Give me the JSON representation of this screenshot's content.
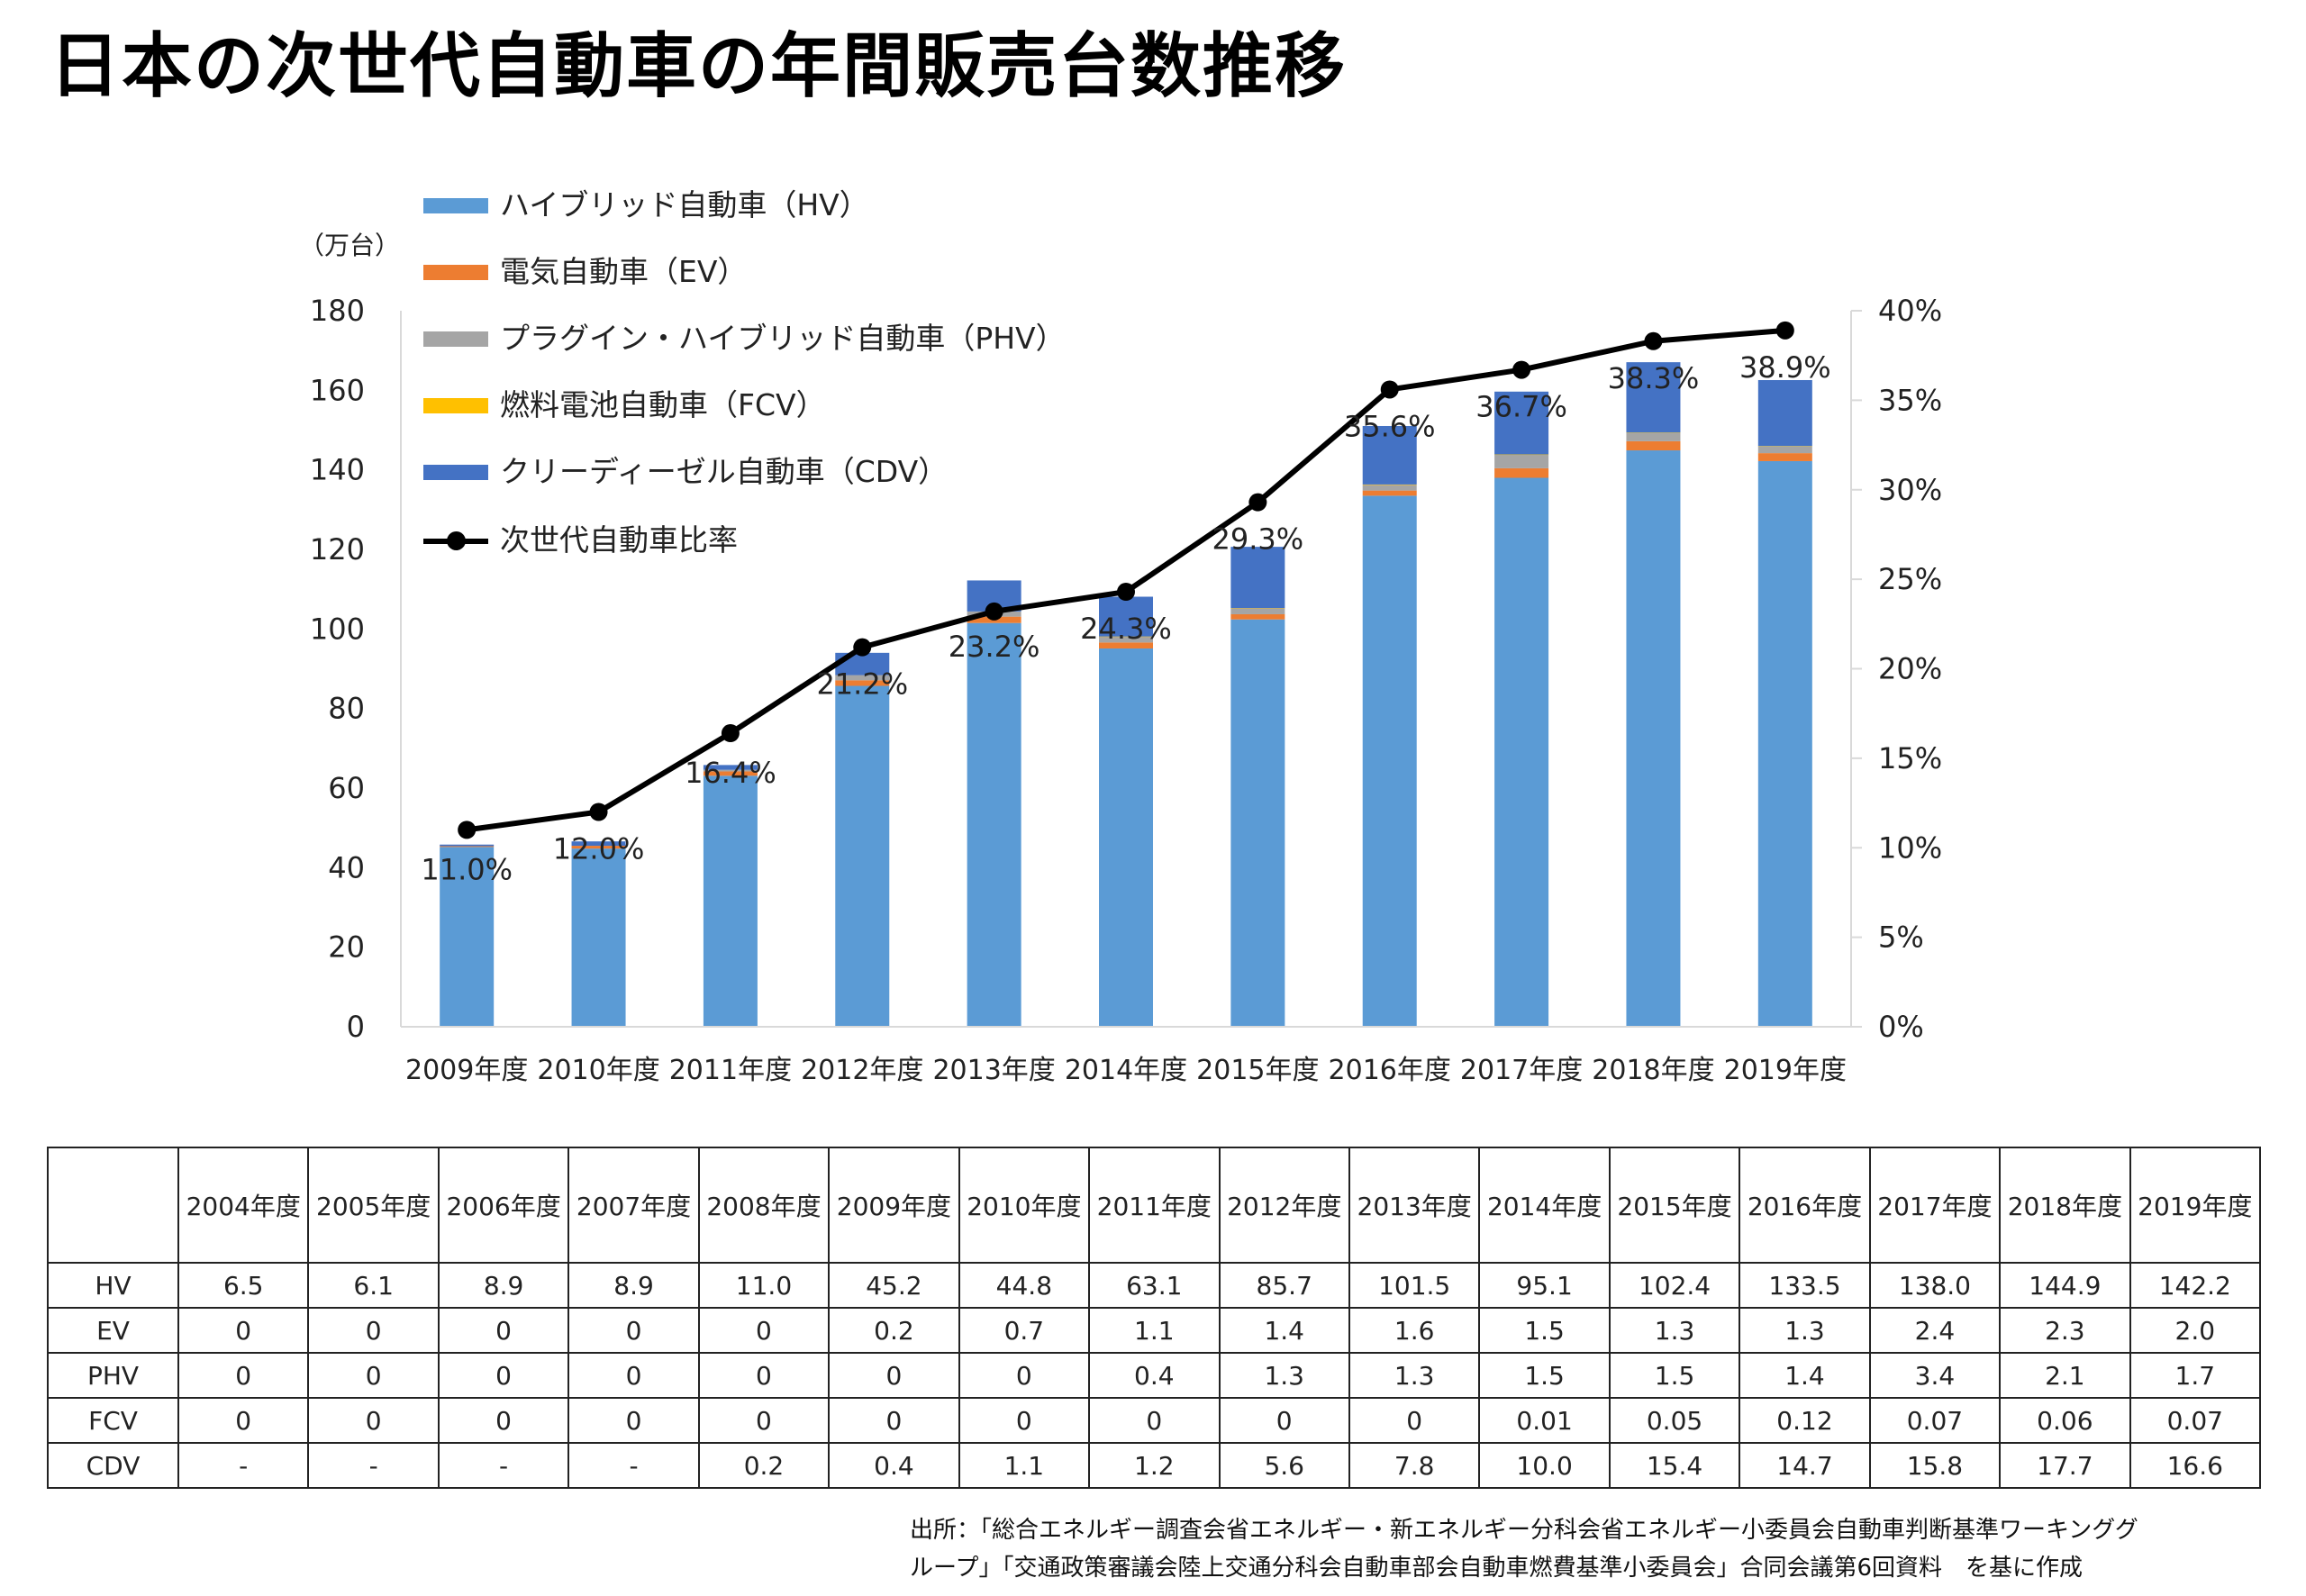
{
  "title": "日本の次世代自動車の年間販売台数推移",
  "colors": {
    "HV": "#5b9bd5",
    "EV": "#ed7d31",
    "PHV": "#a5a5a5",
    "FCV": "#ffc000",
    "CDV": "#4472c4",
    "ratio": "#000000"
  },
  "legend": [
    {
      "key": "HV",
      "label": "ハイブリッド自動車（HV）"
    },
    {
      "key": "EV",
      "label": "電気自動車（EV）"
    },
    {
      "key": "PHV",
      "label": "プラグイン・ハイブリッド自動車（PHV）"
    },
    {
      "key": "FCV",
      "label": "燃料電池自動車（FCV）"
    },
    {
      "key": "CDV",
      "label": "クリーディーゼル自動車（CDV）"
    },
    {
      "key": "ratio",
      "label": "次世代自動車比率"
    }
  ],
  "chart_data": {
    "type": "bar",
    "stacked": true,
    "y_unit_label": "（万台）",
    "categories": [
      "2009年度",
      "2010年度",
      "2011年度",
      "2012年度",
      "2013年度",
      "2014年度",
      "2015年度",
      "2016年度",
      "2017年度",
      "2018年度",
      "2019年度"
    ],
    "series": [
      {
        "name": "ハイブリッド自動車（HV）",
        "key": "HV",
        "values": [
          45.2,
          44.8,
          63.1,
          85.7,
          101.5,
          95.1,
          102.4,
          133.5,
          138.0,
          144.9,
          142.2
        ]
      },
      {
        "name": "電気自動車（EV）",
        "key": "EV",
        "values": [
          0.2,
          0.7,
          1.1,
          1.4,
          1.6,
          1.5,
          1.3,
          1.3,
          2.4,
          2.3,
          2.0
        ]
      },
      {
        "name": "プラグイン・ハイブリッド自動車（PHV）",
        "key": "PHV",
        "values": [
          0,
          0,
          0.4,
          1.3,
          1.3,
          1.5,
          1.5,
          1.4,
          3.4,
          2.1,
          1.7
        ]
      },
      {
        "name": "燃料電池自動車（FCV）",
        "key": "FCV",
        "values": [
          0,
          0,
          0,
          0,
          0,
          0.01,
          0.05,
          0.12,
          0.07,
          0.06,
          0.07
        ]
      },
      {
        "name": "クリーディーゼル自動車（CDV）",
        "key": "CDV",
        "values": [
          0.4,
          1.1,
          1.2,
          5.6,
          7.8,
          10.0,
          15.4,
          14.7,
          15.8,
          17.7,
          16.6
        ]
      }
    ],
    "line_series": {
      "name": "次世代自動車比率",
      "key": "ratio",
      "axis": "right",
      "values": [
        11.0,
        12.0,
        16.4,
        21.2,
        23.2,
        24.3,
        29.3,
        35.6,
        36.7,
        38.3,
        38.9
      ],
      "labels": [
        "11.0%",
        "12.0%",
        "16.4%",
        "21.2%",
        "23.2%",
        "24.3%",
        "29.3%",
        "35.6%",
        "36.7%",
        "38.3%",
        "38.9%"
      ]
    },
    "ylim": [
      0,
      180
    ],
    "yticks": [
      "0",
      "20",
      "40",
      "60",
      "80",
      "100",
      "120",
      "140",
      "160",
      "180"
    ],
    "y2lim": [
      0,
      40
    ],
    "y2ticks": [
      "0%",
      "5%",
      "10%",
      "15%",
      "20%",
      "25%",
      "30%",
      "35%",
      "40%"
    ],
    "legend_position": "top-left inside",
    "grid": false
  },
  "table": {
    "header": [
      "",
      "2004年度",
      "2005年度",
      "2006年度",
      "2007年度",
      "2008年度",
      "2009年度",
      "2010年度",
      "2011年度",
      "2012年度",
      "2013年度",
      "2014年度",
      "2015年度",
      "2016年度",
      "2017年度",
      "2018年度",
      "2019年度"
    ],
    "rows": [
      [
        "HV",
        "6.5",
        "6.1",
        "8.9",
        "8.9",
        "11.0",
        "45.2",
        "44.8",
        "63.1",
        "85.7",
        "101.5",
        "95.1",
        "102.4",
        "133.5",
        "138.0",
        "144.9",
        "142.2"
      ],
      [
        "EV",
        "0",
        "0",
        "0",
        "0",
        "0",
        "0.2",
        "0.7",
        "1.1",
        "1.4",
        "1.6",
        "1.5",
        "1.3",
        "1.3",
        "2.4",
        "2.3",
        "2.0"
      ],
      [
        "PHV",
        "0",
        "0",
        "0",
        "0",
        "0",
        "0",
        "0",
        "0.4",
        "1.3",
        "1.3",
        "1.5",
        "1.5",
        "1.4",
        "3.4",
        "2.1",
        "1.7"
      ],
      [
        "FCV",
        "0",
        "0",
        "0",
        "0",
        "0",
        "0",
        "0",
        "0",
        "0",
        "0",
        "0.01",
        "0.05",
        "0.12",
        "0.07",
        "0.06",
        "0.07"
      ],
      [
        "CDV",
        "-",
        "-",
        "-",
        "-",
        "0.2",
        "0.4",
        "1.1",
        "1.2",
        "5.6",
        "7.8",
        "10.0",
        "15.4",
        "14.7",
        "15.8",
        "17.7",
        "16.6"
      ]
    ]
  },
  "source": {
    "line1": "出所：「総合エネルギー調査会省エネルギー・新エネルギー分科会省エネルギー小委員会自動車判断基準ワーキンググ",
    "line2": "ループ」「交通政策審議会陸上交通分科会自動車部会自動車燃費基準小委員会」合同会議第6回資料　を基に作成"
  }
}
